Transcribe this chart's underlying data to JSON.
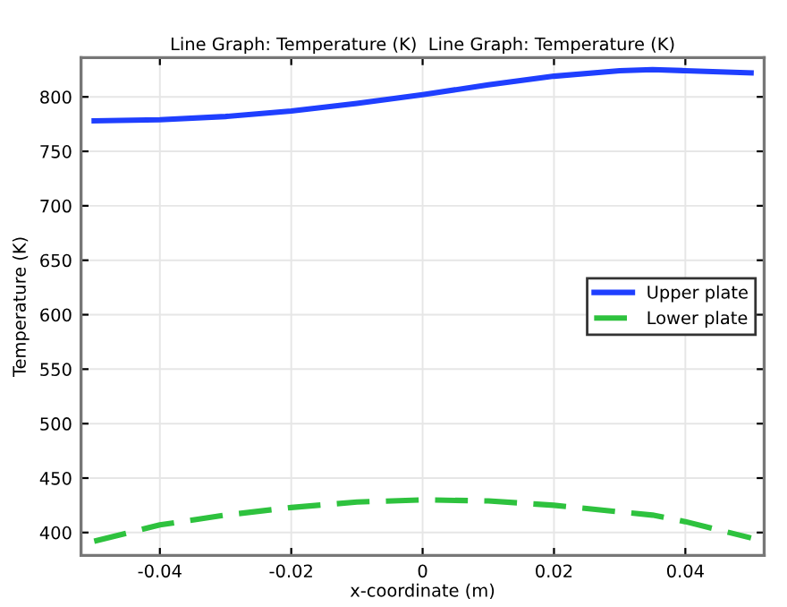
{
  "chart_data": {
    "type": "line",
    "title": "Line Graph: Temperature (K)  Line Graph: Temperature (K)",
    "xlabel": "x-coordinate (m)",
    "ylabel": "Temperature (K)",
    "x": [
      -0.05,
      -0.04,
      -0.03,
      -0.02,
      -0.01,
      0,
      0.01,
      0.02,
      0.03,
      0.035,
      0.04,
      0.05
    ],
    "series": [
      {
        "name": "Upper plate",
        "color": "#1f3fff",
        "line_style": "solid",
        "values": [
          778,
          779,
          782,
          787,
          794,
          802,
          811,
          819,
          824,
          825,
          824,
          822
        ]
      },
      {
        "name": "Lower plate",
        "color": "#2ec23e",
        "line_style": "dashed",
        "values": [
          392,
          407,
          416,
          423,
          428,
          430,
          429,
          425,
          419,
          416,
          410,
          395
        ]
      }
    ],
    "xlim": [
      -0.052,
      0.052
    ],
    "ylim": [
      379,
      836
    ],
    "xticks": [
      -0.04,
      -0.02,
      0,
      0.02,
      0.04
    ],
    "yticks": [
      400,
      450,
      500,
      550,
      600,
      650,
      700,
      750,
      800
    ],
    "grid": true,
    "legend": "right",
    "marker": "none"
  }
}
